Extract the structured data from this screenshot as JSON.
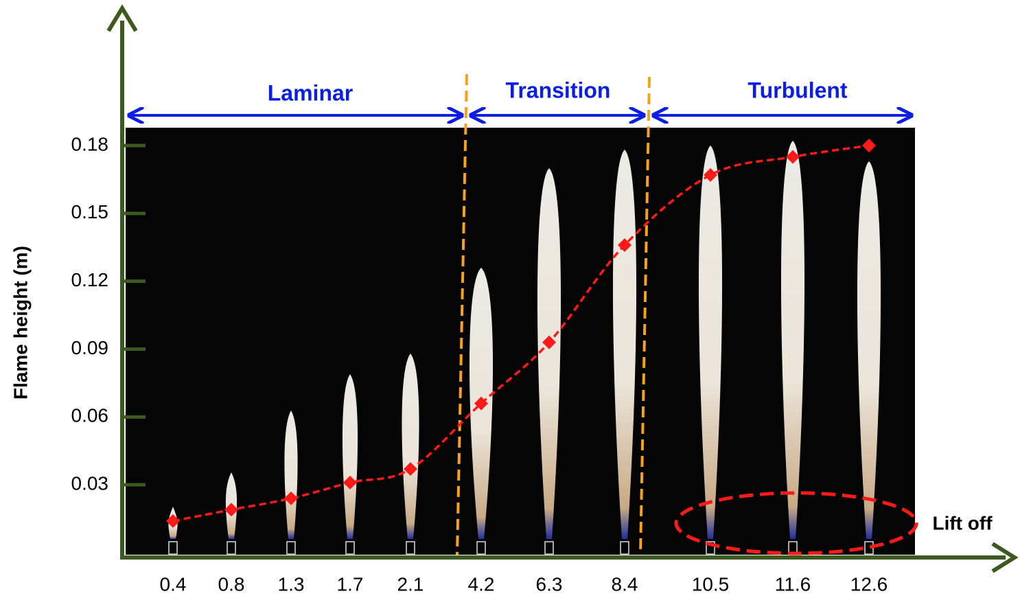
{
  "chart_data": {
    "type": "line",
    "y_label": "Flame height (m)",
    "categories": [
      "0.4",
      "0.8",
      "1.3",
      "1.7",
      "2.1",
      "4.2",
      "6.3",
      "8.4",
      "10.5",
      "11.6",
      "12.6"
    ],
    "series": [
      {
        "color": "#ff1a1a",
        "values": [
          0.014,
          0.019,
          0.024,
          0.031,
          0.037,
          0.066,
          0.093,
          0.136,
          0.167,
          0.175,
          0.18
        ]
      }
    ],
    "ylim": [
      0,
      0.18
    ],
    "yticks": [
      0.03,
      0.06,
      0.09,
      0.12,
      0.15,
      0.18
    ],
    "regions": [
      "Laminar",
      "Transition",
      "Turbulent"
    ],
    "annotation": "Lift off"
  }
}
